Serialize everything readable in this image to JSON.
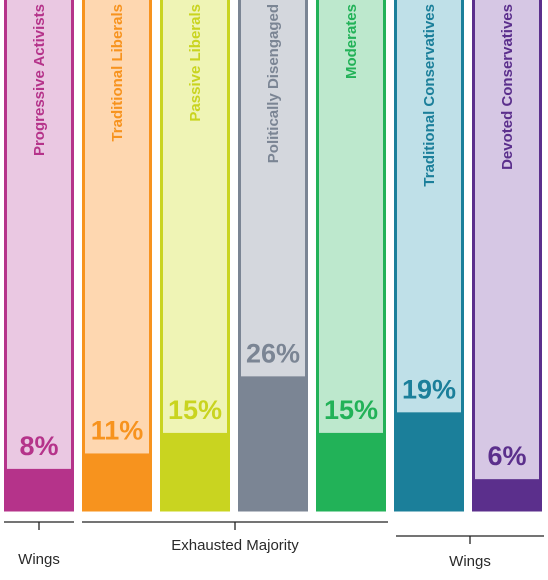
{
  "chart_data": {
    "type": "bar",
    "categories": [
      "Progressive Activists",
      "Traditional Liberals",
      "Passive Liberals",
      "Politically Disengaged",
      "Moderates",
      "Traditional Conservatives",
      "Devoted Conservatives"
    ],
    "values": [
      8,
      11,
      15,
      26,
      15,
      19,
      6
    ],
    "value_labels": [
      "8%",
      "11%",
      "15%",
      "26%",
      "15%",
      "19%",
      "6%"
    ],
    "ylim": [
      0,
      100
    ],
    "colors": {
      "fill": [
        "#b5338a",
        "#f7931e",
        "#c9d420",
        "#7b8594",
        "#22b258",
        "#1b7f9a",
        "#5b2f8c"
      ],
      "light": [
        "#eac8e2",
        "#fed7b0",
        "#eff4b5",
        "#d4d7dd",
        "#bde8cd",
        "#bfe0e8",
        "#d6c7e4"
      ],
      "text": [
        "#b5338a",
        "#f7931e",
        "#c9d420",
        "#7b8594",
        "#22b258",
        "#1b7f9a",
        "#5b2f8c"
      ]
    }
  },
  "groups": [
    {
      "label": "Wings"
    },
    {
      "label": "Exhausted Majority"
    },
    {
      "label": "Wings"
    }
  ]
}
